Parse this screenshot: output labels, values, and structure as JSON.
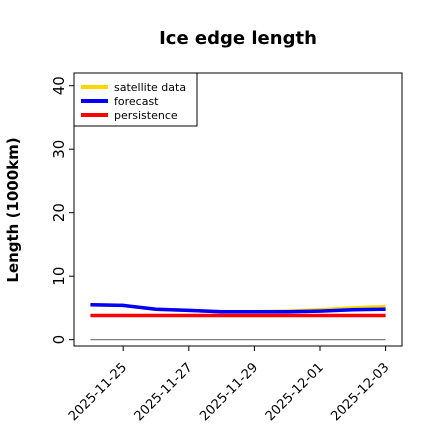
{
  "chart_data": {
    "type": "line",
    "title": "Ice edge length",
    "xlabel": "",
    "ylabel": "Length (1000km)",
    "ylim": [
      -1,
      42
    ],
    "xlim": [
      "2025-11-23T12:00",
      "2025-12-03T12:00"
    ],
    "yticks": [
      0,
      10,
      20,
      30,
      40
    ],
    "xticks": [
      {
        "date": "2025-11-25",
        "label": "2025-11-25",
        "color": "#228b22"
      },
      {
        "date": "2025-11-27",
        "label": "2025-11-27",
        "color": "#000000"
      },
      {
        "date": "2025-11-29",
        "label": "2025-11-29",
        "color": "#000000"
      },
      {
        "date": "2025-12-01",
        "label": "2025-12-01",
        "color": "#000000"
      },
      {
        "date": "2025-12-03",
        "label": "2025-12-03",
        "color": "#000000"
      }
    ],
    "grid": false,
    "legend_position": "top-left",
    "series": [
      {
        "name": "satellite data",
        "color": "#ffd700",
        "x": [
          "2025-11-24",
          "2025-11-25",
          "2025-11-26",
          "2025-11-27",
          "2025-11-28",
          "2025-11-29",
          "2025-11-30",
          "2025-12-01",
          "2025-12-02",
          "2025-12-03"
        ],
        "y": [
          5.5,
          5.4,
          4.8,
          4.6,
          4.4,
          4.4,
          4.5,
          4.7,
          5.0,
          5.2
        ]
      },
      {
        "name": "forecast",
        "color": "#0000ff",
        "x": [
          "2025-11-24",
          "2025-11-25",
          "2025-11-26",
          "2025-11-27",
          "2025-11-28",
          "2025-11-29",
          "2025-11-30",
          "2025-12-01",
          "2025-12-02",
          "2025-12-03"
        ],
        "y": [
          5.5,
          5.4,
          4.8,
          4.6,
          4.4,
          4.4,
          4.4,
          4.5,
          4.7,
          4.8
        ]
      },
      {
        "name": "persistence",
        "color": "#ff0000",
        "x": [
          "2025-11-24",
          "2025-12-03"
        ],
        "y": [
          3.8,
          3.8
        ]
      }
    ],
    "reference_line": {
      "y": 0,
      "color": "#808080",
      "x": [
        "2025-11-24",
        "2025-12-03"
      ]
    }
  }
}
